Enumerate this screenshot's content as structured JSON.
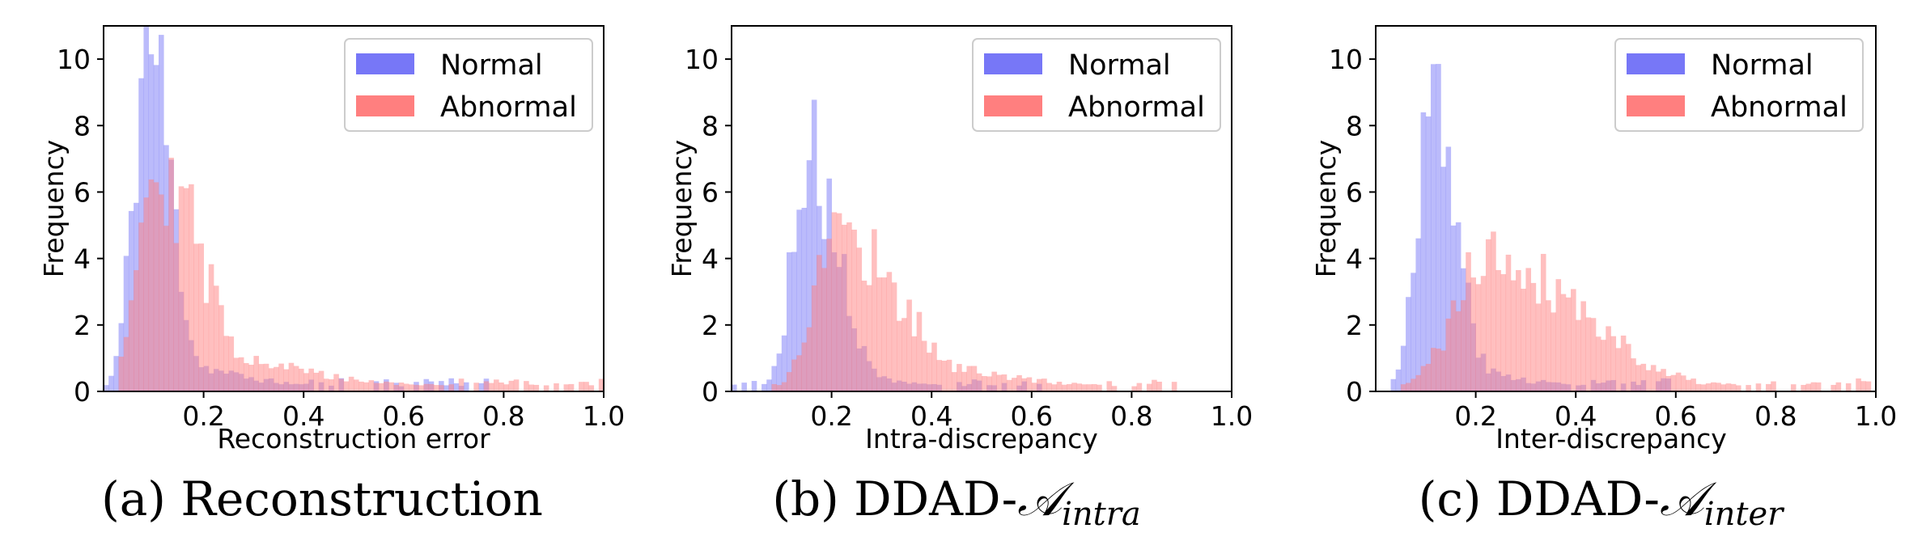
{
  "figure": {
    "series_colors": {
      "normal": "#7777f7",
      "abnormal": "#ff7f7f",
      "overlap": "#b2338f"
    }
  },
  "chart_data": [
    {
      "type": "histogram",
      "caption": "(a) Reconstruction",
      "xlabel": "Reconstruction error",
      "ylabel": "Frequency",
      "xlim": [
        0,
        1.0
      ],
      "ylim": [
        0,
        11
      ],
      "xticks": [
        "0.2",
        "0.4",
        "0.6",
        "0.8",
        "1.0"
      ],
      "yticks": [
        "0",
        "2",
        "4",
        "6",
        "8",
        "10"
      ],
      "legend": {
        "position": "top-right",
        "entries": [
          "Normal",
          "Abnormal"
        ]
      },
      "series": [
        {
          "name": "Normal",
          "peak_x": 0.09,
          "peak_y": 10.5,
          "sigma_left": 0.03,
          "sigma_right": 0.045,
          "tail": 0.15,
          "tail_len": 0.15,
          "start": 0.0,
          "end": 0.78,
          "seed": 11
        },
        {
          "name": "Abnormal",
          "peak_x": 0.1,
          "peak_y": 7.0,
          "sigma_left": 0.035,
          "sigma_right": 0.09,
          "tail": 0.4,
          "tail_len": 0.2,
          "start": 0.03,
          "end": 1.0,
          "seed": 29
        }
      ]
    },
    {
      "type": "histogram",
      "caption": "(b) DDAD-",
      "caption_sym": "𝒜",
      "caption_sub": "intra",
      "xlabel": "Intra-discrepancy",
      "ylabel": "Frequency",
      "xlim": [
        0,
        1.0
      ],
      "ylim": [
        0,
        11
      ],
      "xticks": [
        "0.2",
        "0.4",
        "0.6",
        "0.8",
        "1.0"
      ],
      "yticks": [
        "0",
        "2",
        "4",
        "6",
        "8",
        "10"
      ],
      "legend": {
        "position": "top-right",
        "entries": [
          "Normal",
          "Abnormal"
        ]
      },
      "series": [
        {
          "name": "Normal",
          "peak_x": 0.15,
          "peak_y": 7.1,
          "sigma_left": 0.03,
          "sigma_right": 0.06,
          "tail": 0.2,
          "tail_len": 0.12,
          "start": 0.0,
          "end": 0.64,
          "seed": 5
        },
        {
          "name": "Abnormal",
          "peak_x": 0.21,
          "peak_y": 4.9,
          "sigma_left": 0.045,
          "sigma_right": 0.12,
          "tail": 0.5,
          "tail_len": 0.2,
          "start": 0.06,
          "end": 0.9,
          "seed": 17
        }
      ]
    },
    {
      "type": "histogram",
      "caption": "(c) DDAD-",
      "caption_sym": "𝒜",
      "caption_sub": "inter",
      "xlabel": "Inter-discrepancy",
      "ylabel": "Frequency",
      "xlim": [
        0,
        1.0
      ],
      "ylim": [
        0,
        11
      ],
      "xticks": [
        "0.2",
        "0.4",
        "0.6",
        "0.8",
        "1.0"
      ],
      "yticks": [
        "0",
        "2",
        "4",
        "6",
        "8",
        "10"
      ],
      "legend": {
        "position": "top-right",
        "entries": [
          "Normal",
          "Abnormal"
        ]
      },
      "series": [
        {
          "name": "Normal",
          "peak_x": 0.11,
          "peak_y": 8.5,
          "sigma_left": 0.03,
          "sigma_right": 0.05,
          "tail": 0.15,
          "tail_len": 0.15,
          "start": 0.0,
          "end": 0.6,
          "seed": 3
        },
        {
          "name": "Abnormal",
          "peak_x": 0.23,
          "peak_y": 4.1,
          "sigma_left": 0.07,
          "sigma_right": 0.18,
          "tail": 0.5,
          "tail_len": 0.2,
          "start": 0.05,
          "end": 1.0,
          "seed": 41
        }
      ]
    }
  ]
}
